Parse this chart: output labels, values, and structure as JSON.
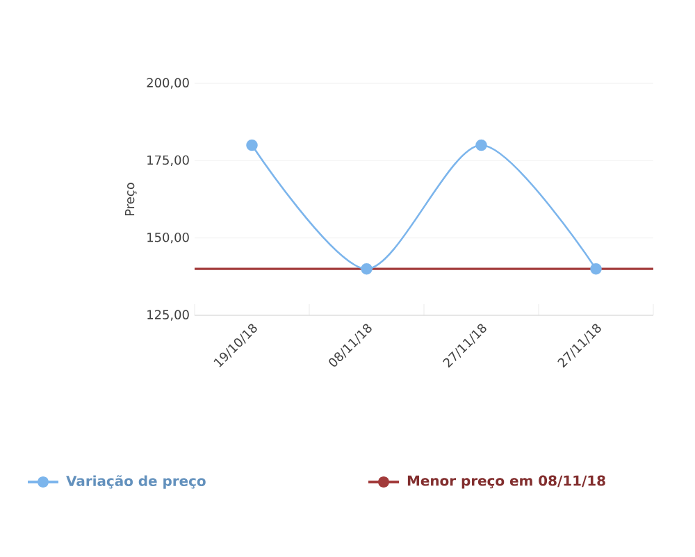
{
  "chart_data": {
    "type": "line",
    "ylabel": "Preço",
    "categories": [
      "19/10/18",
      "08/11/18",
      "27/11/18",
      "27/11/18"
    ],
    "series": [
      {
        "name": "Variação de preço",
        "color": "#7cb5ec",
        "values": [
          180,
          140,
          180,
          140
        ]
      }
    ],
    "ref_lines": [
      {
        "axis": "y",
        "value": 140,
        "label": "Menor preço em 08/11/18",
        "color": "#a23a3a"
      }
    ],
    "ylim": [
      125,
      200
    ],
    "yticks": [
      {
        "value": 125,
        "label": "125,00"
      },
      {
        "value": 150,
        "label": "150,00"
      },
      {
        "value": 175,
        "label": "175,00"
      },
      {
        "value": 200,
        "label": "200,00"
      }
    ],
    "grid": "y",
    "legend": "bottom",
    "marker": "circle",
    "line_style": "solid"
  }
}
